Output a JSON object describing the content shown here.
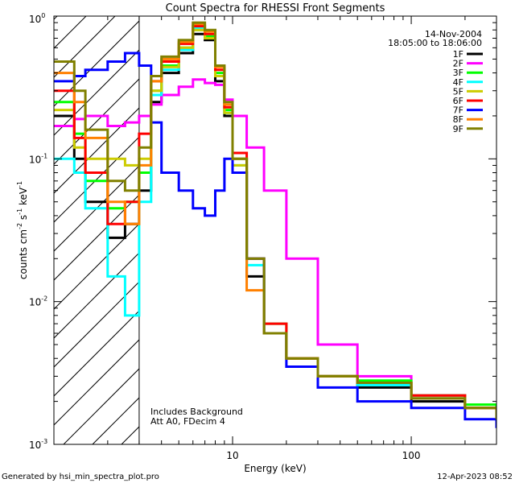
{
  "chart_data": {
    "type": "line",
    "title": "Count Spectra for RHESSI Front Segments",
    "xlabel": "Energy (keV)",
    "ylabel_base": "counts cm",
    "ylabel_exp1": "-2",
    "ylabel_mid": " s",
    "ylabel_exp2": "-1",
    "ylabel_tail": " keV",
    "ylabel_exp3": "-1",
    "xscale": "log",
    "yscale": "log",
    "xlim": [
      1,
      300
    ],
    "ylim": [
      0.001,
      1
    ],
    "x_ticks": [
      {
        "value": 10,
        "label": "10"
      },
      {
        "value": 100,
        "label": "100"
      }
    ],
    "y_ticks": [
      {
        "value": 1,
        "base": "10",
        "exp": "0"
      },
      {
        "value": 0.1,
        "base": "10",
        "exp": "-1"
      },
      {
        "value": 0.01,
        "base": "10",
        "exp": "-2"
      },
      {
        "value": 0.001,
        "base": "10",
        "exp": "-3"
      }
    ],
    "shaded_region_xmax": 3,
    "date": "14-Nov-2004",
    "time_range": "18:05:00 to 18:06:00",
    "annotation_lines": [
      "Includes Background",
      "Att A0, FDecim 4"
    ],
    "legend_position": "top-right",
    "series": [
      {
        "name": "1F",
        "color": "#000000",
        "x": [
          1,
          1.3,
          1.5,
          2,
          2.5,
          3,
          3.5,
          4,
          5,
          6,
          7,
          8,
          9,
          10,
          12,
          15,
          20,
          30,
          50,
          100,
          200,
          300
        ],
        "y": [
          0.2,
          0.1,
          0.05,
          0.028,
          0.035,
          0.06,
          0.25,
          0.4,
          0.55,
          0.75,
          0.68,
          0.35,
          0.2,
          0.08,
          0.015,
          0.006,
          0.004,
          0.003,
          0.0025,
          0.002,
          0.0018,
          0.0015
        ]
      },
      {
        "name": "2F",
        "color": "#ff00ff",
        "x": [
          1,
          1.3,
          1.5,
          2,
          2.5,
          3,
          3.5,
          4,
          5,
          6,
          7,
          8,
          9,
          10,
          12,
          15,
          20,
          30,
          50,
          100,
          200,
          300
        ],
        "y": [
          0.17,
          0.19,
          0.2,
          0.17,
          0.18,
          0.2,
          0.24,
          0.28,
          0.32,
          0.36,
          0.34,
          0.33,
          0.26,
          0.2,
          0.12,
          0.06,
          0.02,
          0.005,
          0.003,
          0.0022,
          0.0018,
          0.0015
        ]
      },
      {
        "name": "3F",
        "color": "#00ff00",
        "x": [
          1,
          1.3,
          1.5,
          2,
          2.5,
          3,
          3.5,
          4,
          5,
          6,
          7,
          8,
          9,
          10,
          12,
          15,
          20,
          30,
          50,
          100,
          200,
          300
        ],
        "y": [
          0.25,
          0.15,
          0.07,
          0.045,
          0.05,
          0.08,
          0.3,
          0.45,
          0.6,
          0.8,
          0.72,
          0.4,
          0.22,
          0.1,
          0.02,
          0.007,
          0.004,
          0.003,
          0.0028,
          0.0022,
          0.0019,
          0.0016
        ]
      },
      {
        "name": "4F",
        "color": "#00ffff",
        "x": [
          1,
          1.3,
          1.5,
          2,
          2.5,
          3,
          3.5,
          4,
          5,
          6,
          7,
          8,
          9,
          10,
          12,
          15,
          20,
          30,
          50,
          100,
          200,
          300
        ],
        "y": [
          0.1,
          0.08,
          0.045,
          0.015,
          0.008,
          0.05,
          0.28,
          0.42,
          0.58,
          0.82,
          0.7,
          0.38,
          0.21,
          0.09,
          0.018,
          0.006,
          0.004,
          0.003,
          0.0026,
          0.0021,
          0.0018,
          0.0016
        ]
      },
      {
        "name": "5F",
        "color": "#cccc00",
        "x": [
          1,
          1.3,
          1.5,
          2,
          2.5,
          3,
          3.5,
          4,
          5,
          6,
          7,
          8,
          9,
          10,
          12,
          15,
          20,
          30,
          50,
          100,
          200,
          300
        ],
        "y": [
          0.22,
          0.12,
          0.1,
          0.1,
          0.09,
          0.1,
          0.3,
          0.44,
          0.6,
          0.8,
          0.7,
          0.38,
          0.21,
          0.09,
          0.02,
          0.006,
          0.004,
          0.003,
          0.0027,
          0.0021,
          0.0018,
          0.0016
        ]
      },
      {
        "name": "6F",
        "color": "#ff0000",
        "x": [
          1,
          1.3,
          1.5,
          2,
          2.5,
          3,
          3.5,
          4,
          5,
          6,
          7,
          8,
          9,
          10,
          12,
          15,
          20,
          30,
          50,
          100,
          200,
          300
        ],
        "y": [
          0.3,
          0.14,
          0.08,
          0.035,
          0.05,
          0.15,
          0.35,
          0.48,
          0.64,
          0.85,
          0.75,
          0.42,
          0.23,
          0.11,
          0.02,
          0.007,
          0.004,
          0.003,
          0.0027,
          0.0022,
          0.0018,
          0.0016
        ]
      },
      {
        "name": "7F",
        "color": "#0000ff",
        "x": [
          1,
          1.3,
          1.5,
          2,
          2.5,
          3,
          3.5,
          4,
          5,
          6,
          7,
          8,
          9,
          10,
          12,
          15,
          20,
          30,
          50,
          100,
          200,
          300
        ],
        "y": [
          0.35,
          0.38,
          0.42,
          0.48,
          0.55,
          0.45,
          0.18,
          0.08,
          0.06,
          0.045,
          0.04,
          0.06,
          0.1,
          0.08,
          0.02,
          0.006,
          0.0035,
          0.0025,
          0.002,
          0.0018,
          0.0015,
          0.0013
        ]
      },
      {
        "name": "8F",
        "color": "#ff8000",
        "x": [
          1,
          1.3,
          1.5,
          2,
          2.5,
          3,
          3.5,
          4,
          5,
          6,
          7,
          8,
          9,
          10,
          12,
          15,
          20,
          30,
          50,
          100,
          200,
          300
        ],
        "y": [
          0.4,
          0.25,
          0.14,
          0.05,
          0.035,
          0.09,
          0.35,
          0.5,
          0.66,
          0.88,
          0.78,
          0.44,
          0.24,
          0.1,
          0.012,
          0.006,
          0.004,
          0.003,
          0.0027,
          0.0021,
          0.0018,
          0.0016
        ]
      },
      {
        "name": "9F",
        "color": "#808000",
        "x": [
          1,
          1.3,
          1.5,
          2,
          2.5,
          3,
          3.5,
          4,
          5,
          6,
          7,
          8,
          9,
          10,
          12,
          15,
          20,
          30,
          50,
          100,
          200,
          300
        ],
        "y": [
          0.48,
          0.3,
          0.16,
          0.07,
          0.06,
          0.12,
          0.38,
          0.52,
          0.68,
          0.9,
          0.8,
          0.45,
          0.25,
          0.1,
          0.02,
          0.006,
          0.004,
          0.003,
          0.0027,
          0.0021,
          0.0018,
          0.0015
        ]
      }
    ]
  },
  "footer": {
    "generated_by": "Generated by hsi_min_spectra_plot.pro",
    "timestamp": "12-Apr-2023 08:52"
  }
}
